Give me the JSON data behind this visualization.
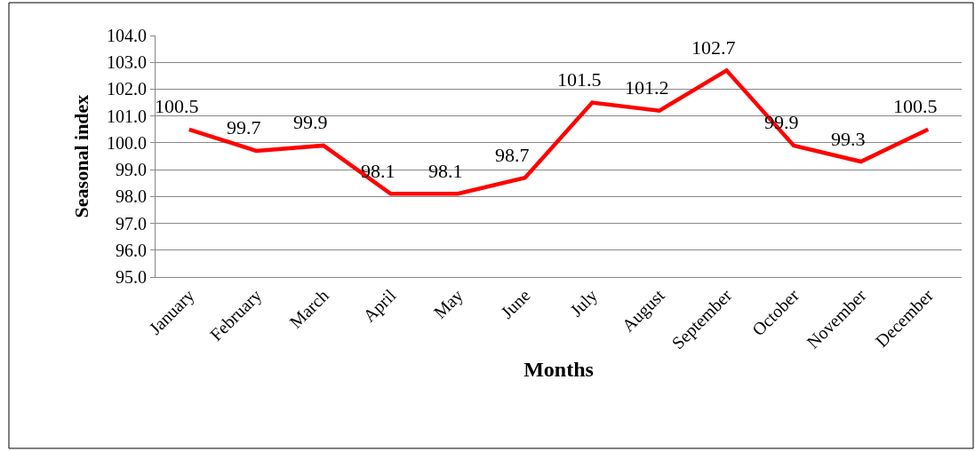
{
  "chart_data": {
    "type": "line",
    "xlabel": "Months",
    "ylabel": "Seasonal index",
    "categories": [
      "January",
      "February",
      "March",
      "April",
      "May",
      "June",
      "July",
      "August",
      "September",
      "October",
      "November",
      "December"
    ],
    "series": [
      {
        "color": "#ff0000",
        "values": [
          100.5,
          99.7,
          99.9,
          98.1,
          98.1,
          98.7,
          101.5,
          101.2,
          102.7,
          99.9,
          99.3,
          100.5
        ]
      }
    ],
    "ylim": [
      95.0,
      104.0
    ],
    "yticks": [
      {
        "value": 95,
        "label": "95.0"
      },
      {
        "value": 96,
        "label": "96.0"
      },
      {
        "value": 97,
        "label": "97.0"
      },
      {
        "value": 98,
        "label": "98.0"
      },
      {
        "value": 99,
        "label": "99.0"
      },
      {
        "value": 100,
        "label": "100.0"
      },
      {
        "value": 101,
        "label": "101.0"
      },
      {
        "value": 102,
        "label": "102.0"
      },
      {
        "value": 103,
        "label": "103.0"
      },
      {
        "value": 104,
        "label": "104.0"
      }
    ],
    "grid": "y",
    "data_labels": true,
    "marker": "none",
    "line_style": "solid"
  }
}
